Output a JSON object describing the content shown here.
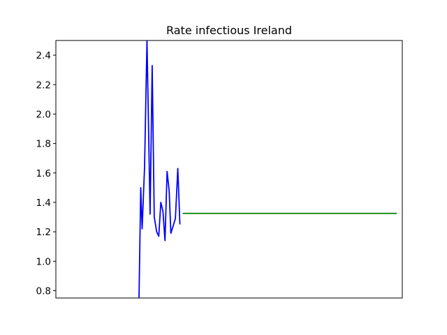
{
  "chart_data": {
    "type": "line",
    "title": "Rate infectious Ireland",
    "xlabel": "",
    "ylabel": "",
    "xlim": [
      0,
      100
    ],
    "ylim": [
      0.75,
      2.5
    ],
    "x_ticks_shown": false,
    "y_ticks": [
      0.8,
      1.0,
      1.2,
      1.4,
      1.6,
      1.8,
      2.0,
      2.2,
      2.4
    ],
    "y_tick_labels": [
      "0.8",
      "1.0",
      "1.2",
      "1.4",
      "1.6",
      "1.8",
      "2.0",
      "2.2",
      "2.4"
    ],
    "grid": false,
    "legend": "none",
    "series": [
      {
        "color": "#0000ff",
        "x": [
          24.0,
          24.5,
          24.9,
          25.6,
          26.3,
          27.2,
          27.8,
          28.4,
          29.1,
          29.7,
          30.3,
          30.9,
          31.5,
          32.1,
          32.7,
          33.2,
          34.5,
          35.2,
          35.8
        ],
        "y": [
          0.75,
          1.5,
          1.22,
          1.64,
          2.5,
          1.32,
          2.33,
          1.3,
          1.2,
          1.17,
          1.4,
          1.34,
          1.14,
          1.61,
          1.48,
          1.19,
          1.29,
          1.63,
          1.25
        ]
      },
      {
        "color": "#008000",
        "x": [
          36.6,
          98.4
        ],
        "y": [
          1.325,
          1.325
        ]
      }
    ]
  }
}
